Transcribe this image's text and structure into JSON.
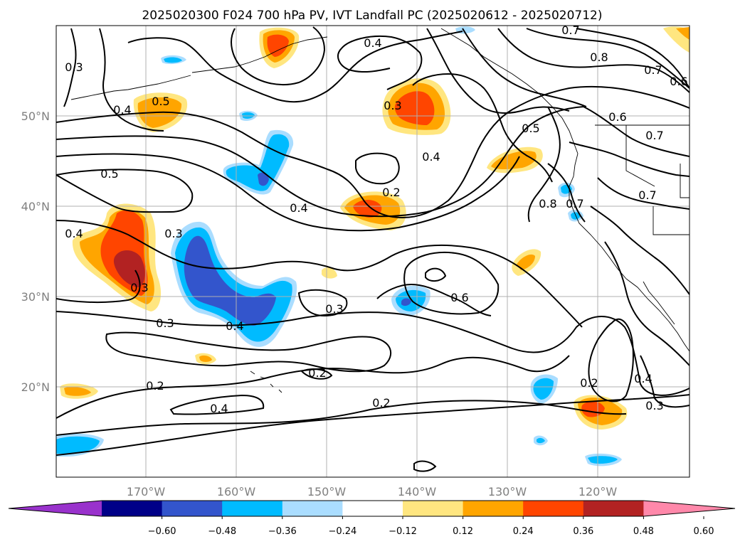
{
  "title": "2025020300 F024 700 hPa PV, IVT Landfall PC (2025020612 - 2025020712)",
  "axes": {
    "x_ticks": [
      "170°W",
      "160°W",
      "150°W",
      "140°W",
      "130°W",
      "120°W"
    ],
    "y_ticks": [
      "50°N",
      "40°N",
      "30°N",
      "20°N"
    ]
  },
  "colorbar": {
    "ticks": [
      "−0.60",
      "−0.48",
      "−0.36",
      "−0.24",
      "−0.12",
      "0.12",
      "0.24",
      "0.36",
      "0.48",
      "0.60"
    ],
    "colors": [
      "#9932cc",
      "#000088",
      "#3355cc",
      "#00bbff",
      "#aaddff",
      "#ffffff",
      "#ffe680",
      "#ffa500",
      "#ff4500",
      "#b22222",
      "#ff88aa"
    ]
  },
  "contour_labels": [
    "0.7",
    "0.4",
    "0.8",
    "0.7",
    "0.6",
    "0.3",
    "0.5",
    "0.4",
    "0.3",
    "0.6",
    "0.7",
    "0.4",
    "0.5",
    "0.2",
    "0.5",
    "0.8",
    "0.7",
    "0.7",
    "0.4",
    "0.4",
    "0.3",
    "0.3",
    "0.6",
    "0.3",
    "0.4",
    "0.3",
    "0.2",
    "0.2",
    "0.4",
    "0.2",
    "0.2",
    "0.4",
    "0.3"
  ],
  "colors": {
    "grid": "#b0b0b0",
    "contour": "#000000",
    "tick_label": "#808080"
  }
}
